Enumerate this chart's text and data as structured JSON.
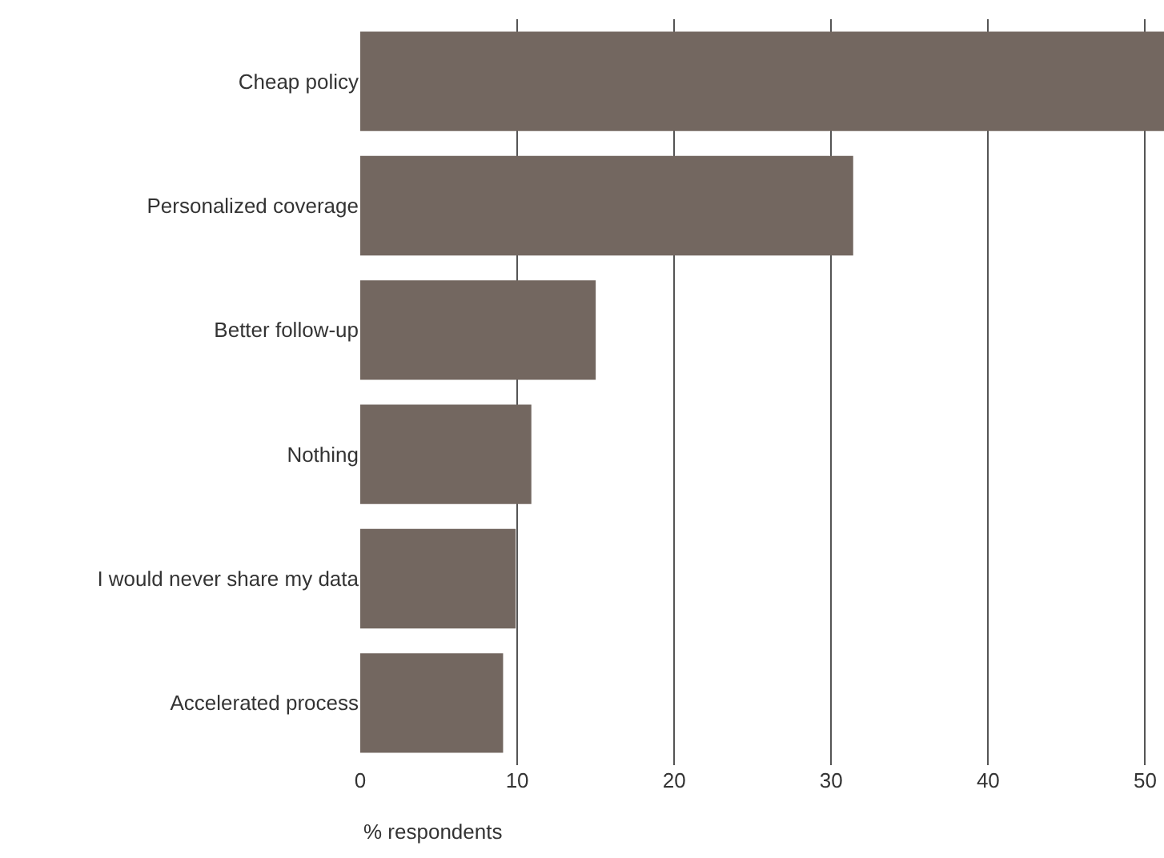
{
  "chart_data": {
    "type": "bar",
    "orientation": "horizontal",
    "xlabel": "% respondents",
    "categories": [
      "Cheap policy",
      "Personalized coverage",
      "Better follow-up",
      "Nothing",
      "I would never share my data",
      "Accelerated process"
    ],
    "values": [
      51.2,
      31.4,
      15.0,
      10.9,
      9.9,
      9.1
    ],
    "color": "#736760",
    "xlim": [
      0,
      51.2
    ],
    "xticks": [
      0,
      10,
      20,
      30,
      40,
      50
    ],
    "grid": "x"
  }
}
